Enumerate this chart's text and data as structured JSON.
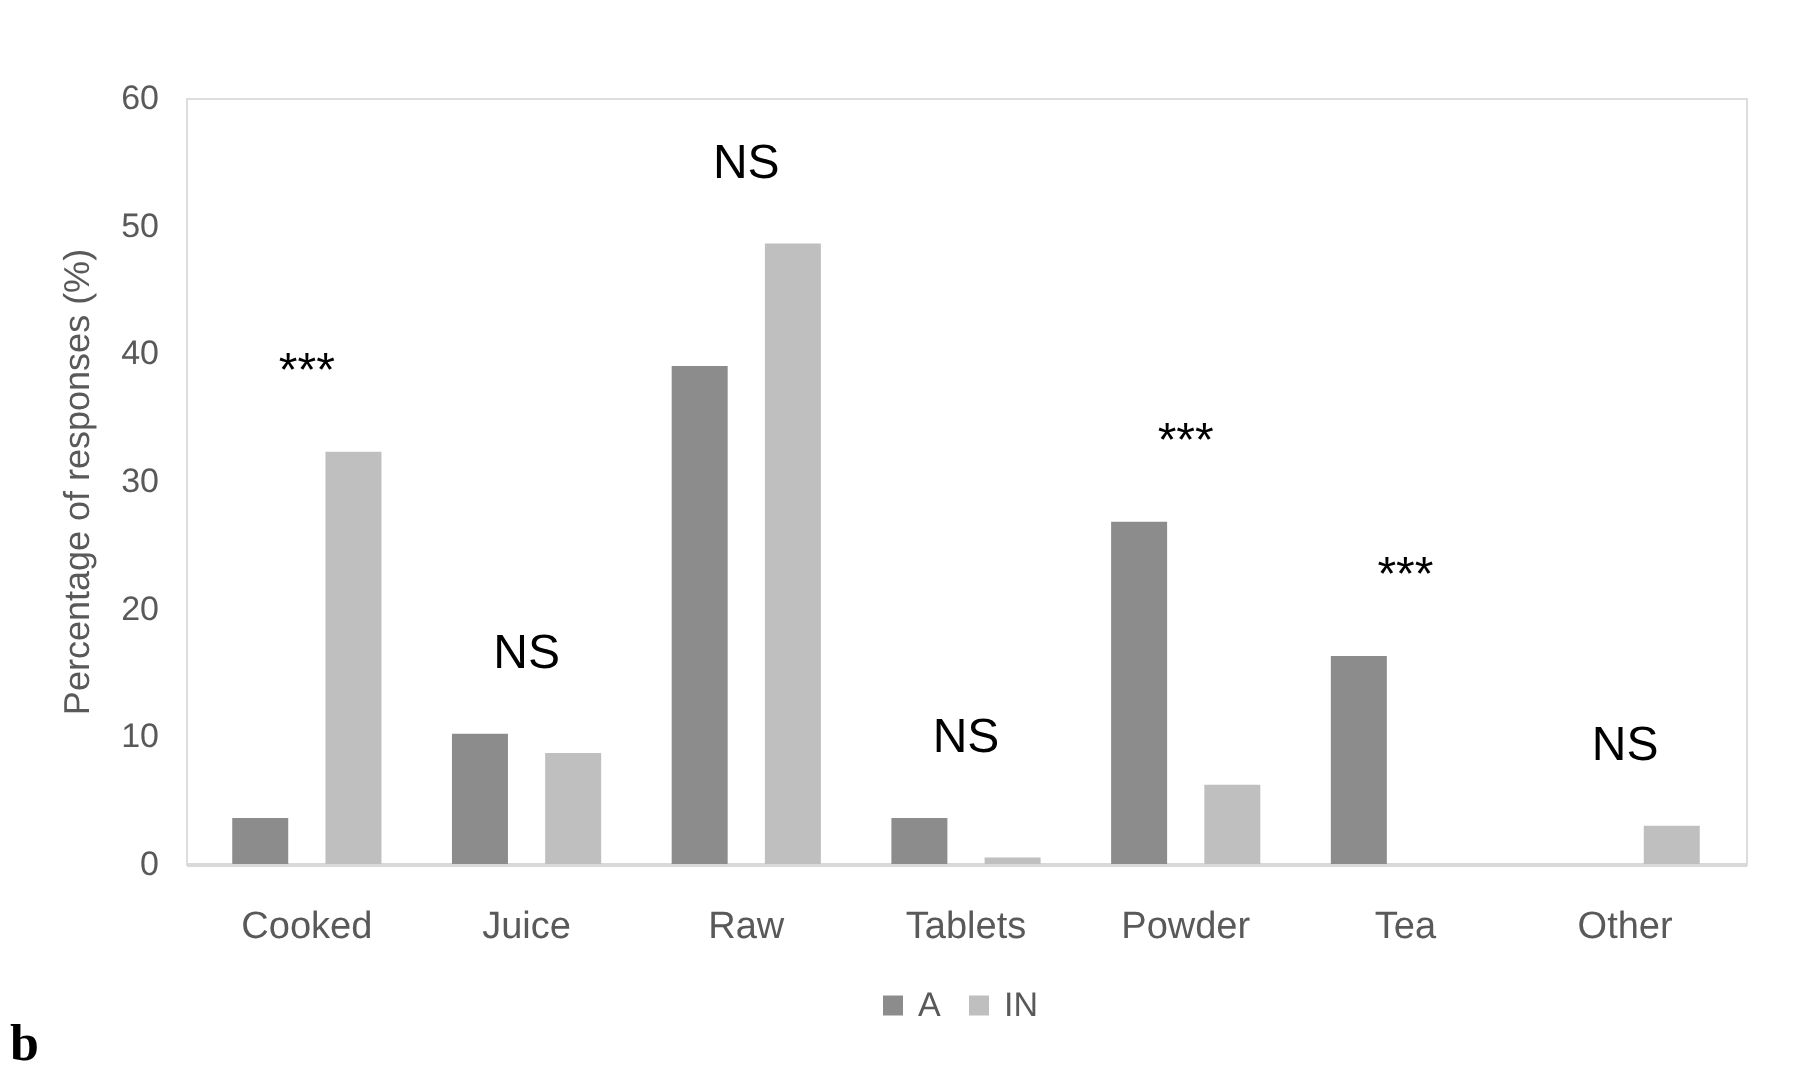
{
  "chart_data": {
    "type": "bar",
    "ylabel": "Percentage of responses (%)",
    "categories": [
      "Cooked",
      "Juice",
      "Raw",
      "Tablets",
      "Powder",
      "Tea",
      "Other"
    ],
    "series": [
      {
        "name": "A",
        "color": "#8c8c8c",
        "values": [
          3.6,
          10.2,
          39.0,
          3.6,
          26.8,
          16.3,
          0
        ]
      },
      {
        "name": "IN",
        "color": "#bfbfbf",
        "values": [
          32.3,
          8.7,
          48.6,
          0.5,
          6.2,
          0,
          3.0
        ]
      }
    ],
    "ylim": [
      0,
      60
    ],
    "yticks": [
      0,
      10,
      20,
      30,
      40,
      50,
      60
    ],
    "grid": false,
    "legend": "bottom",
    "annotations": [
      "***",
      "NS",
      "NS",
      "NS",
      "***",
      "***",
      "NS",
      "b"
    ]
  }
}
